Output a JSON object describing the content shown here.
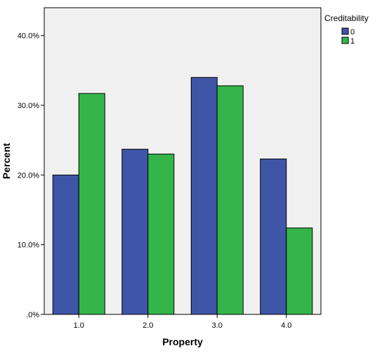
{
  "chart_data": {
    "type": "bar",
    "xlabel": "Property",
    "ylabel": "Percent",
    "categories": [
      "1.0",
      "2.0",
      "3.0",
      "4.0"
    ],
    "series": [
      {
        "name": "0",
        "values": [
          20.0,
          23.7,
          34.0,
          22.3
        ],
        "color": "#3f55a8"
      },
      {
        "name": "1",
        "values": [
          31.7,
          23.0,
          32.8,
          12.4
        ],
        "color": "#33b54a"
      }
    ],
    "ylim": [
      0,
      44
    ],
    "yticks": [
      0,
      10,
      20,
      30,
      40
    ],
    "ytick_labels": [
      ".0%",
      "10.0%",
      "20.0%",
      "30.0%",
      "40.0%"
    ],
    "legend": {
      "title": "Creditability",
      "position": "top-right"
    },
    "plot_background": "#f0f0f0",
    "grid": false
  }
}
